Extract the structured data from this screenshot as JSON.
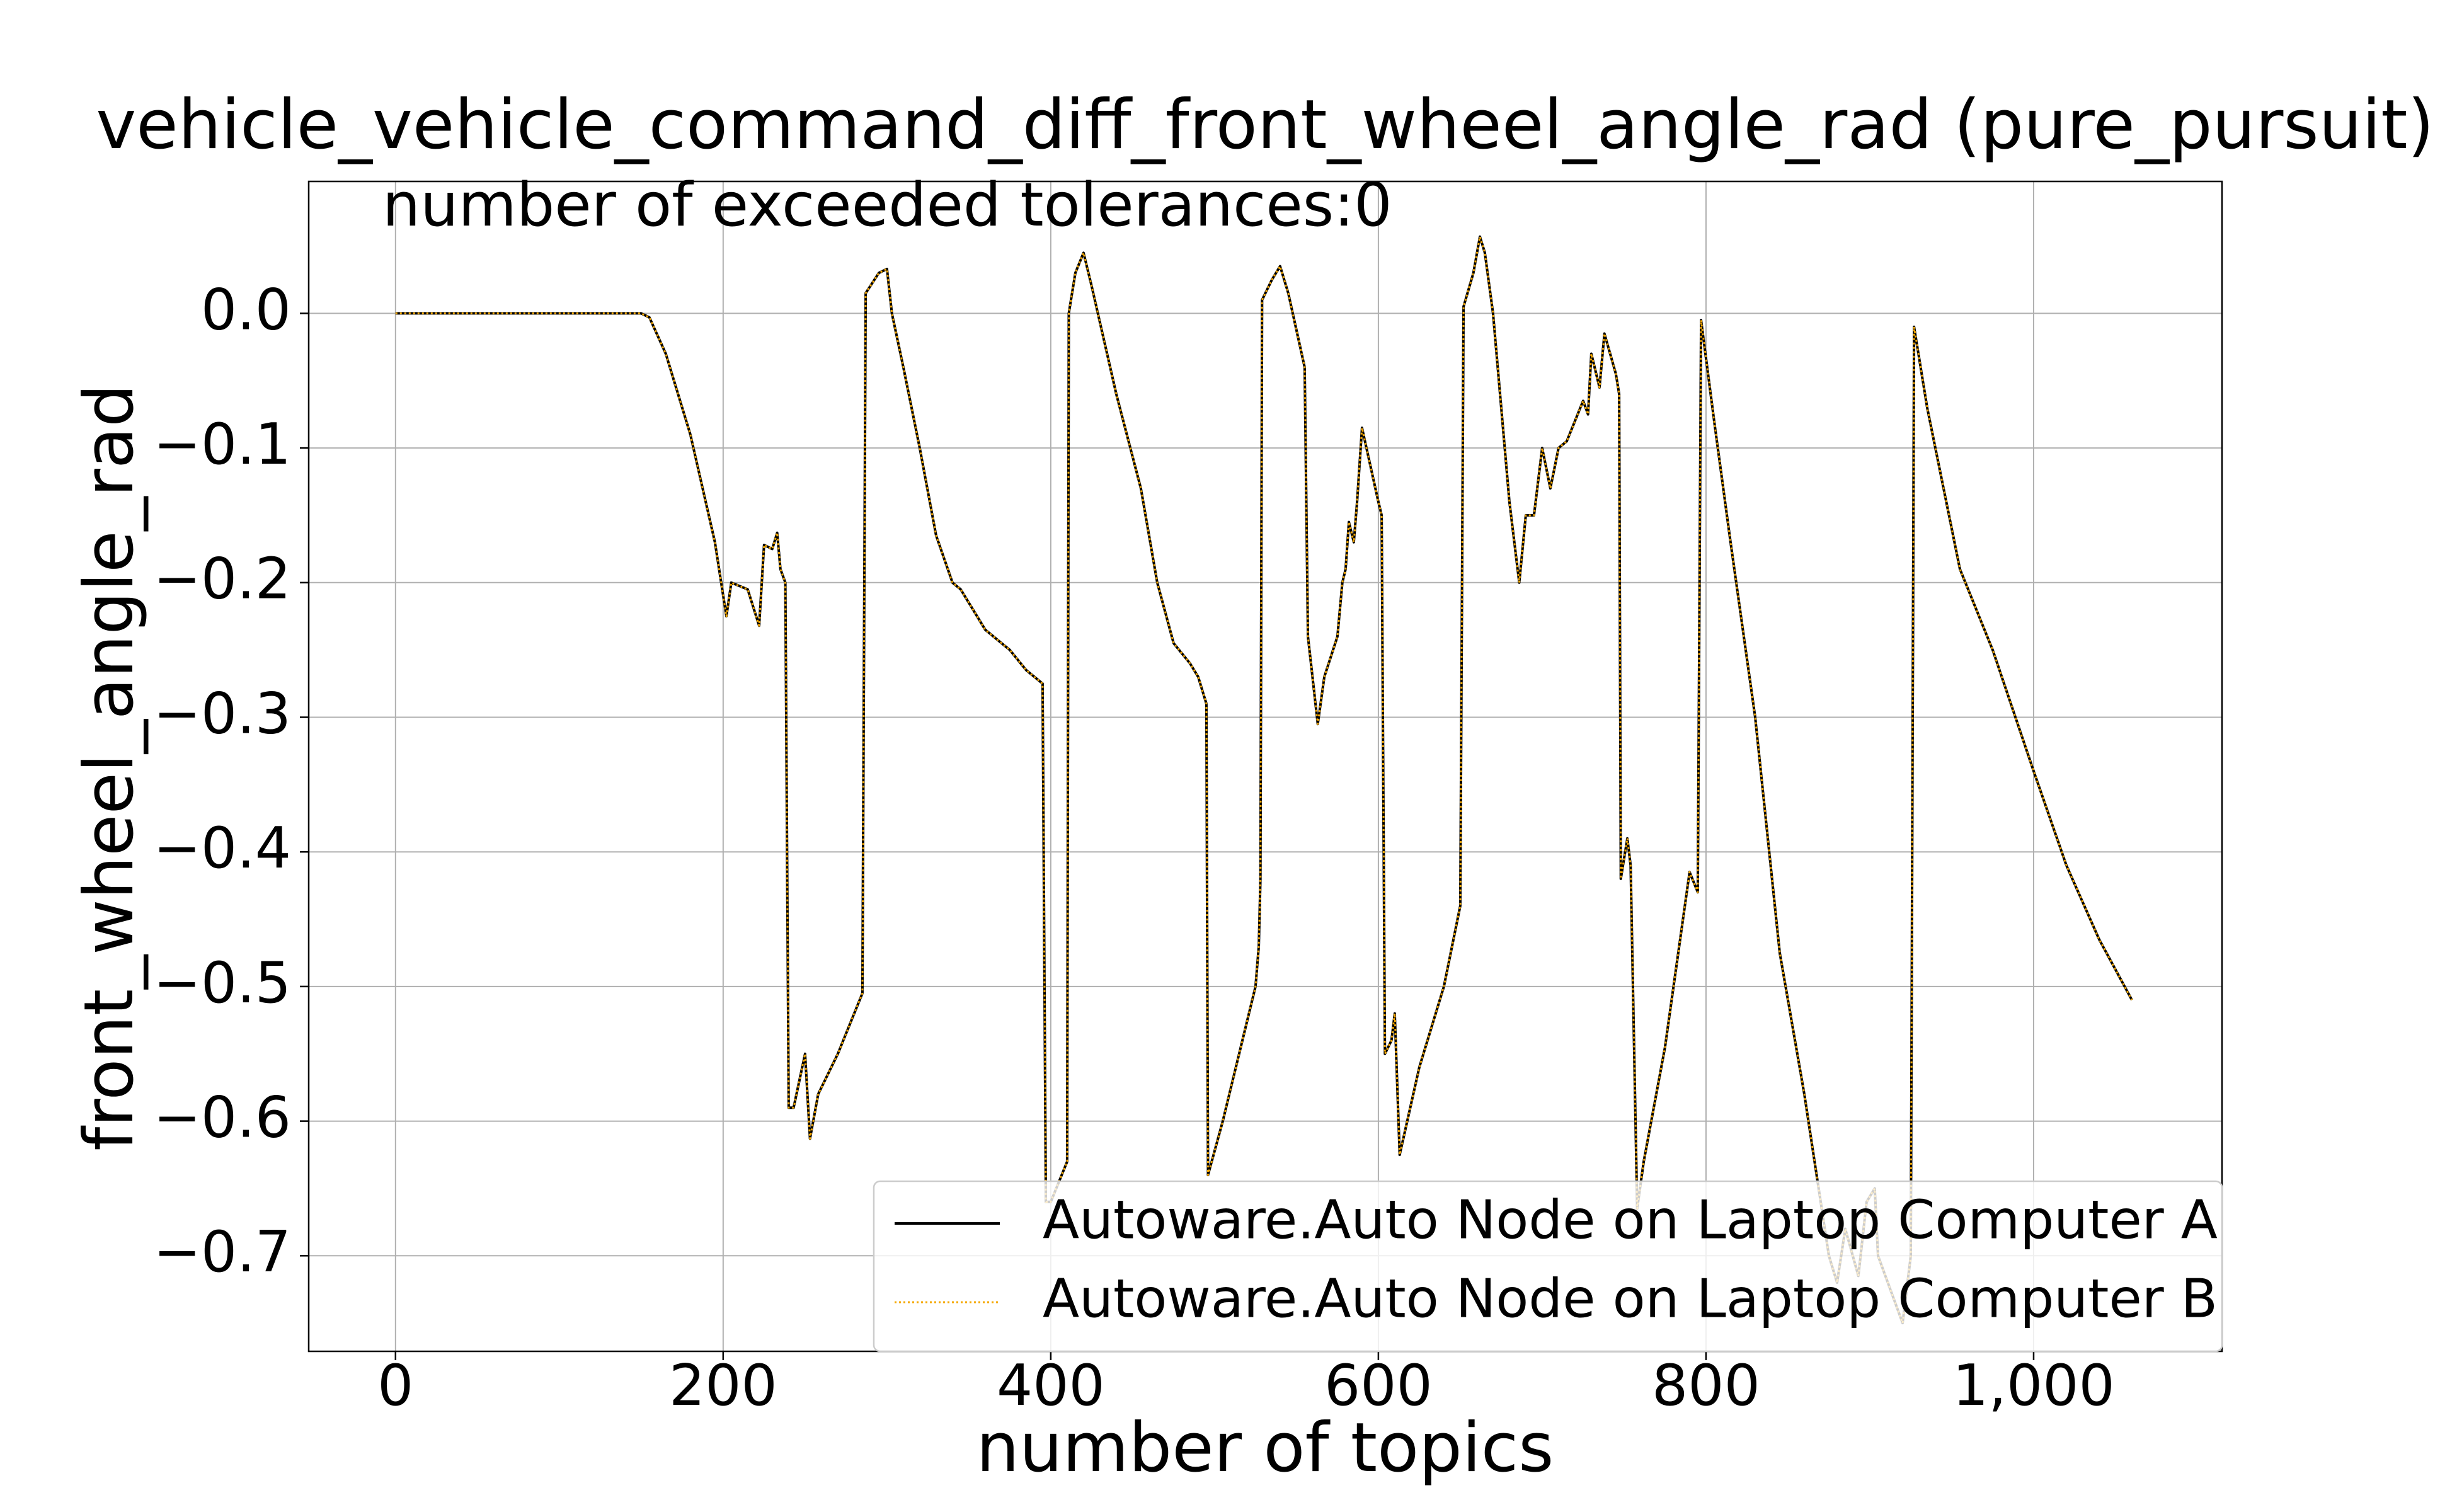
{
  "chart_data": {
    "type": "line",
    "title": "vehicle_vehicle_command_diff_front_wheel_angle_rad (pure_pursuit)",
    "annotation": "number of exceeded tolerances:0",
    "xlabel": "number of topics",
    "ylabel": "front_wheel_angle_rad",
    "x": [
      0,
      150,
      155,
      165,
      180,
      195,
      202,
      205,
      215,
      222,
      225,
      230,
      233,
      235,
      238,
      240,
      243,
      250,
      253,
      258,
      270,
      285,
      287,
      295,
      300,
      303,
      310,
      320,
      330,
      340,
      345,
      360,
      375,
      385,
      395,
      397,
      400,
      410,
      411,
      415,
      420,
      425,
      440,
      455,
      465,
      475,
      485,
      490,
      495,
      496,
      505,
      515,
      525,
      527,
      528,
      529,
      535,
      540,
      545,
      555,
      557,
      563,
      567,
      575,
      578,
      580,
      582,
      585,
      587,
      590,
      600,
      602,
      604,
      608,
      610,
      613,
      625,
      640,
      650,
      652,
      658,
      662,
      665,
      670,
      680,
      686,
      690,
      695,
      700,
      705,
      710,
      715,
      720,
      725,
      728,
      730,
      735,
      738,
      745,
      747,
      748,
      752,
      754,
      758,
      762,
      775,
      790,
      795,
      797,
      805,
      815,
      830,
      845,
      860,
      875,
      880,
      885,
      893,
      898,
      903,
      905,
      920,
      925,
      927,
      935,
      945,
      955,
      975,
      1000,
      1020,
      1040,
      1060
    ],
    "series": [
      {
        "name": "Autoware.Auto Node on Laptop Computer A",
        "color": "#000000",
        "style": "solid",
        "values": [
          0,
          0,
          -0.003,
          -0.03,
          -0.09,
          -0.17,
          -0.225,
          -0.2,
          -0.205,
          -0.232,
          -0.172,
          -0.175,
          -0.163,
          -0.19,
          -0.2,
          -0.59,
          -0.59,
          -0.55,
          -0.613,
          -0.58,
          -0.55,
          -0.505,
          0.015,
          0.03,
          0.033,
          0,
          -0.04,
          -0.1,
          -0.165,
          -0.2,
          -0.205,
          -0.235,
          -0.25,
          -0.265,
          -0.275,
          -0.66,
          -0.66,
          -0.63,
          0,
          0.03,
          0.045,
          0.02,
          -0.06,
          -0.13,
          -0.2,
          -0.245,
          -0.26,
          -0.27,
          -0.29,
          -0.64,
          -0.6,
          -0.55,
          -0.5,
          -0.47,
          -0.42,
          0.01,
          0.025,
          0.035,
          0.015,
          -0.04,
          -0.24,
          -0.305,
          -0.27,
          -0.24,
          -0.2,
          -0.19,
          -0.155,
          -0.17,
          -0.14,
          -0.085,
          -0.14,
          -0.15,
          -0.55,
          -0.54,
          -0.52,
          -0.625,
          -0.56,
          -0.5,
          -0.44,
          0.005,
          0.03,
          0.057,
          0.045,
          0,
          -0.14,
          -0.2,
          -0.15,
          -0.15,
          -0.1,
          -0.13,
          -0.1,
          -0.095,
          -0.08,
          -0.065,
          -0.075,
          -0.03,
          -0.055,
          -0.015,
          -0.045,
          -0.06,
          -0.42,
          -0.39,
          -0.41,
          -0.665,
          -0.63,
          -0.545,
          -0.415,
          -0.43,
          -0.005,
          -0.08,
          -0.17,
          -0.3,
          -0.475,
          -0.58,
          -0.7,
          -0.72,
          -0.68,
          -0.715,
          -0.66,
          -0.65,
          -0.7,
          -0.75,
          -0.7,
          -0.01,
          -0.07,
          -0.13,
          -0.19,
          -0.25,
          -0.34,
          -0.41,
          -0.465,
          -0.51
        ]
      },
      {
        "name": "Autoware.Auto Node on Laptop Computer B",
        "color": "#f5a800",
        "style": "dotted",
        "values": [
          0,
          0,
          -0.003,
          -0.03,
          -0.09,
          -0.17,
          -0.225,
          -0.2,
          -0.205,
          -0.232,
          -0.172,
          -0.175,
          -0.163,
          -0.19,
          -0.2,
          -0.59,
          -0.59,
          -0.55,
          -0.613,
          -0.58,
          -0.55,
          -0.505,
          0.015,
          0.03,
          0.033,
          0,
          -0.04,
          -0.1,
          -0.165,
          -0.2,
          -0.205,
          -0.235,
          -0.25,
          -0.265,
          -0.275,
          -0.66,
          -0.66,
          -0.63,
          0,
          0.03,
          0.045,
          0.02,
          -0.06,
          -0.13,
          -0.2,
          -0.245,
          -0.26,
          -0.27,
          -0.29,
          -0.64,
          -0.6,
          -0.55,
          -0.5,
          -0.47,
          -0.42,
          0.01,
          0.025,
          0.035,
          0.015,
          -0.04,
          -0.24,
          -0.305,
          -0.27,
          -0.24,
          -0.2,
          -0.19,
          -0.155,
          -0.17,
          -0.14,
          -0.085,
          -0.14,
          -0.15,
          -0.55,
          -0.54,
          -0.52,
          -0.625,
          -0.56,
          -0.5,
          -0.44,
          0.005,
          0.03,
          0.057,
          0.045,
          0,
          -0.14,
          -0.2,
          -0.15,
          -0.15,
          -0.1,
          -0.13,
          -0.1,
          -0.095,
          -0.08,
          -0.065,
          -0.075,
          -0.03,
          -0.055,
          -0.015,
          -0.045,
          -0.06,
          -0.42,
          -0.39,
          -0.41,
          -0.665,
          -0.63,
          -0.545,
          -0.415,
          -0.43,
          -0.005,
          -0.08,
          -0.17,
          -0.3,
          -0.475,
          -0.58,
          -0.7,
          -0.72,
          -0.68,
          -0.715,
          -0.66,
          -0.65,
          -0.7,
          -0.75,
          -0.7,
          -0.01,
          -0.07,
          -0.13,
          -0.19,
          -0.25,
          -0.34,
          -0.41,
          -0.465,
          -0.51
        ]
      }
    ],
    "xlim": [
      -53,
      1115
    ],
    "ylim": [
      -0.771,
      0.098
    ],
    "xticks": [
      0,
      200,
      400,
      600,
      800,
      {
        "value": 1000,
        "label": "1,000"
      }
    ],
    "yticks": [
      {
        "value": 0,
        "label": "0.0"
      },
      {
        "value": -0.1,
        "label": "−0.1"
      },
      {
        "value": -0.2,
        "label": "−0.2"
      },
      {
        "value": -0.3,
        "label": "−0.3"
      },
      {
        "value": -0.4,
        "label": "−0.4"
      },
      {
        "value": -0.5,
        "label": "−0.5"
      },
      {
        "value": -0.6,
        "label": "−0.6"
      },
      {
        "value": -0.7,
        "label": "−0.7"
      }
    ],
    "grid": true,
    "legend": "lower right"
  }
}
